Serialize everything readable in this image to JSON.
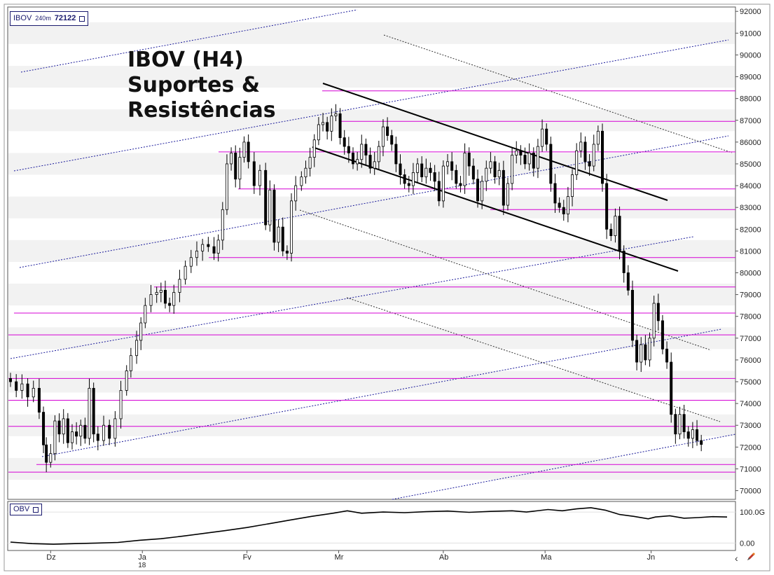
{
  "title": {
    "line1": "IBOV (H4)",
    "line2": "Suportes &",
    "line3": "Resistências"
  },
  "symbol_box": {
    "symbol": "IBOV",
    "timeframe": "240m",
    "last_price": "72122"
  },
  "obv_box": {
    "label": "OBV"
  },
  "colors": {
    "support_resistance": "#d400d4",
    "trend_channel": "#000000",
    "dotted_blue": "#1a1a9a",
    "dotted_black": "#333333",
    "candle": "#000000",
    "band": "#f2f2f2",
    "frame": "#1a1a6e"
  },
  "icons": {
    "scroll_left": "chevron-left-icon",
    "tool": "pencil-icon"
  },
  "chart_data": [
    {
      "type": "candlestick",
      "title": "IBOV (H4) Suportes & Resistências",
      "symbol": "IBOV",
      "timeframe": "240m",
      "last_price": 72122,
      "ylim": [
        69600,
        92200
      ],
      "y_ticks": [
        "92000",
        "91000",
        "90000",
        "89000",
        "88000",
        "87000",
        "86000",
        "85000",
        "84000",
        "83000",
        "82000",
        "81000",
        "80000",
        "79000",
        "78000",
        "77000",
        "76000",
        "75000",
        "74000",
        "73000",
        "72000",
        "71000",
        "70000"
      ],
      "x_ticks": [
        {
          "label": "Dz",
          "sub": "",
          "t": 0.056
        },
        {
          "label": "Ja",
          "sub": "18",
          "t": 0.184
        },
        {
          "label": "Fv",
          "sub": "",
          "t": 0.33
        },
        {
          "label": "Mr",
          "sub": "",
          "t": 0.458
        },
        {
          "label": "Ab",
          "sub": "",
          "t": 0.604
        },
        {
          "label": "Ma",
          "sub": "",
          "t": 0.746
        },
        {
          "label": "Jn",
          "sub": "",
          "t": 0.894
        }
      ],
      "support_resistance_levels": [
        88350,
        86950,
        85550,
        83850,
        82900,
        80700,
        79350,
        78150,
        77150,
        75150,
        74150,
        72950,
        71200,
        70850
      ],
      "closes": [
        [
          0.0,
          75000
        ],
        [
          0.008,
          74600
        ],
        [
          0.016,
          74900
        ],
        [
          0.024,
          74300
        ],
        [
          0.032,
          74700
        ],
        [
          0.04,
          73600
        ],
        [
          0.046,
          72100
        ],
        [
          0.05,
          71300
        ],
        [
          0.056,
          71700
        ],
        [
          0.062,
          73200
        ],
        [
          0.068,
          72600
        ],
        [
          0.074,
          73300
        ],
        [
          0.08,
          72200
        ],
        [
          0.086,
          72700
        ],
        [
          0.092,
          72500
        ],
        [
          0.098,
          73000
        ],
        [
          0.104,
          72400
        ],
        [
          0.11,
          74700
        ],
        [
          0.116,
          72600
        ],
        [
          0.122,
          72300
        ],
        [
          0.13,
          73000
        ],
        [
          0.138,
          72400
        ],
        [
          0.146,
          73300
        ],
        [
          0.154,
          74600
        ],
        [
          0.162,
          75500
        ],
        [
          0.168,
          76200
        ],
        [
          0.176,
          76900
        ],
        [
          0.182,
          77700
        ],
        [
          0.188,
          78500
        ],
        [
          0.196,
          79000
        ],
        [
          0.204,
          79100
        ],
        [
          0.21,
          79200
        ],
        [
          0.216,
          78600
        ],
        [
          0.222,
          78500
        ],
        [
          0.228,
          79100
        ],
        [
          0.236,
          79700
        ],
        [
          0.244,
          80300
        ],
        [
          0.252,
          80700
        ],
        [
          0.26,
          81000
        ],
        [
          0.268,
          81300
        ],
        [
          0.276,
          81200
        ],
        [
          0.284,
          80900
        ],
        [
          0.29,
          81500
        ],
        [
          0.296,
          82900
        ],
        [
          0.302,
          85000
        ],
        [
          0.308,
          85500
        ],
        [
          0.314,
          84300
        ],
        [
          0.32,
          85300
        ],
        [
          0.326,
          86000
        ],
        [
          0.332,
          85100
        ],
        [
          0.34,
          84000
        ],
        [
          0.348,
          84700
        ],
        [
          0.356,
          82200
        ],
        [
          0.362,
          83800
        ],
        [
          0.368,
          81400
        ],
        [
          0.374,
          82100
        ],
        [
          0.38,
          81000
        ],
        [
          0.386,
          80900
        ],
        [
          0.392,
          83300
        ],
        [
          0.398,
          84000
        ],
        [
          0.406,
          84400
        ],
        [
          0.412,
          84800
        ],
        [
          0.418,
          85300
        ],
        [
          0.424,
          86100
        ],
        [
          0.43,
          86800
        ],
        [
          0.436,
          86900
        ],
        [
          0.442,
          86500
        ],
        [
          0.448,
          87200
        ],
        [
          0.454,
          87300
        ],
        [
          0.46,
          86200
        ],
        [
          0.466,
          85800
        ],
        [
          0.472,
          85500
        ],
        [
          0.478,
          85000
        ],
        [
          0.484,
          85200
        ],
        [
          0.49,
          85900
        ],
        [
          0.496,
          85400
        ],
        [
          0.502,
          84800
        ],
        [
          0.508,
          85100
        ],
        [
          0.514,
          85800
        ],
        [
          0.52,
          86700
        ],
        [
          0.526,
          86300
        ],
        [
          0.532,
          85900
        ],
        [
          0.538,
          85000
        ],
        [
          0.544,
          84500
        ],
        [
          0.55,
          84100
        ],
        [
          0.556,
          84000
        ],
        [
          0.562,
          84600
        ],
        [
          0.568,
          85000
        ],
        [
          0.574,
          84400
        ],
        [
          0.58,
          84800
        ],
        [
          0.586,
          84600
        ],
        [
          0.592,
          84200
        ],
        [
          0.598,
          83300
        ],
        [
          0.604,
          84900
        ],
        [
          0.61,
          85100
        ],
        [
          0.616,
          84700
        ],
        [
          0.622,
          84100
        ],
        [
          0.628,
          84000
        ],
        [
          0.634,
          85500
        ],
        [
          0.64,
          84900
        ],
        [
          0.646,
          84300
        ],
        [
          0.652,
          83300
        ],
        [
          0.658,
          84200
        ],
        [
          0.664,
          84800
        ],
        [
          0.67,
          85100
        ],
        [
          0.676,
          84400
        ],
        [
          0.682,
          84700
        ],
        [
          0.688,
          83100
        ],
        [
          0.694,
          84100
        ],
        [
          0.7,
          85400
        ],
        [
          0.706,
          85600
        ],
        [
          0.712,
          85400
        ],
        [
          0.718,
          85000
        ],
        [
          0.724,
          85500
        ],
        [
          0.73,
          84800
        ],
        [
          0.736,
          85800
        ],
        [
          0.742,
          86600
        ],
        [
          0.748,
          85900
        ],
        [
          0.754,
          84100
        ],
        [
          0.76,
          83200
        ],
        [
          0.766,
          83000
        ],
        [
          0.772,
          82700
        ],
        [
          0.778,
          83500
        ],
        [
          0.784,
          84500
        ],
        [
          0.79,
          85600
        ],
        [
          0.796,
          86000
        ],
        [
          0.802,
          85100
        ],
        [
          0.808,
          84900
        ],
        [
          0.814,
          85900
        ],
        [
          0.82,
          86500
        ],
        [
          0.826,
          84100
        ],
        [
          0.832,
          82000
        ],
        [
          0.838,
          81700
        ],
        [
          0.844,
          82600
        ],
        [
          0.85,
          81000
        ],
        [
          0.856,
          80000
        ],
        [
          0.862,
          79200
        ],
        [
          0.868,
          76900
        ],
        [
          0.874,
          75900
        ],
        [
          0.88,
          76700
        ],
        [
          0.886,
          76000
        ],
        [
          0.892,
          77000
        ],
        [
          0.898,
          78600
        ],
        [
          0.904,
          77800
        ],
        [
          0.91,
          76500
        ],
        [
          0.916,
          75900
        ],
        [
          0.922,
          73500
        ],
        [
          0.928,
          72600
        ],
        [
          0.934,
          73500
        ],
        [
          0.94,
          72700
        ],
        [
          0.946,
          72400
        ],
        [
          0.952,
          72800
        ],
        [
          0.958,
          72300
        ],
        [
          0.964,
          72122
        ]
      ],
      "obv_panel": {
        "y_ticks": [
          "100.0G",
          "0.00"
        ],
        "values": [
          [
            0.0,
            3
          ],
          [
            0.03,
            -2
          ],
          [
            0.06,
            -4
          ],
          [
            0.09,
            -2
          ],
          [
            0.12,
            0
          ],
          [
            0.15,
            2
          ],
          [
            0.18,
            9
          ],
          [
            0.21,
            14
          ],
          [
            0.24,
            22
          ],
          [
            0.27,
            31
          ],
          [
            0.3,
            40
          ],
          [
            0.33,
            50
          ],
          [
            0.36,
            62
          ],
          [
            0.39,
            74
          ],
          [
            0.42,
            86
          ],
          [
            0.45,
            96
          ],
          [
            0.47,
            104
          ],
          [
            0.49,
            96
          ],
          [
            0.52,
            100
          ],
          [
            0.55,
            98
          ],
          [
            0.58,
            101
          ],
          [
            0.61,
            103
          ],
          [
            0.64,
            99
          ],
          [
            0.67,
            102
          ],
          [
            0.7,
            104
          ],
          [
            0.72,
            100
          ],
          [
            0.75,
            108
          ],
          [
            0.77,
            104
          ],
          [
            0.79,
            110
          ],
          [
            0.81,
            114
          ],
          [
            0.83,
            106
          ],
          [
            0.85,
            92
          ],
          [
            0.87,
            86
          ],
          [
            0.89,
            78
          ],
          [
            0.9,
            84
          ],
          [
            0.92,
            88
          ],
          [
            0.94,
            80
          ],
          [
            0.96,
            82
          ],
          [
            0.98,
            85
          ],
          [
            1.0,
            84
          ]
        ]
      }
    }
  ]
}
